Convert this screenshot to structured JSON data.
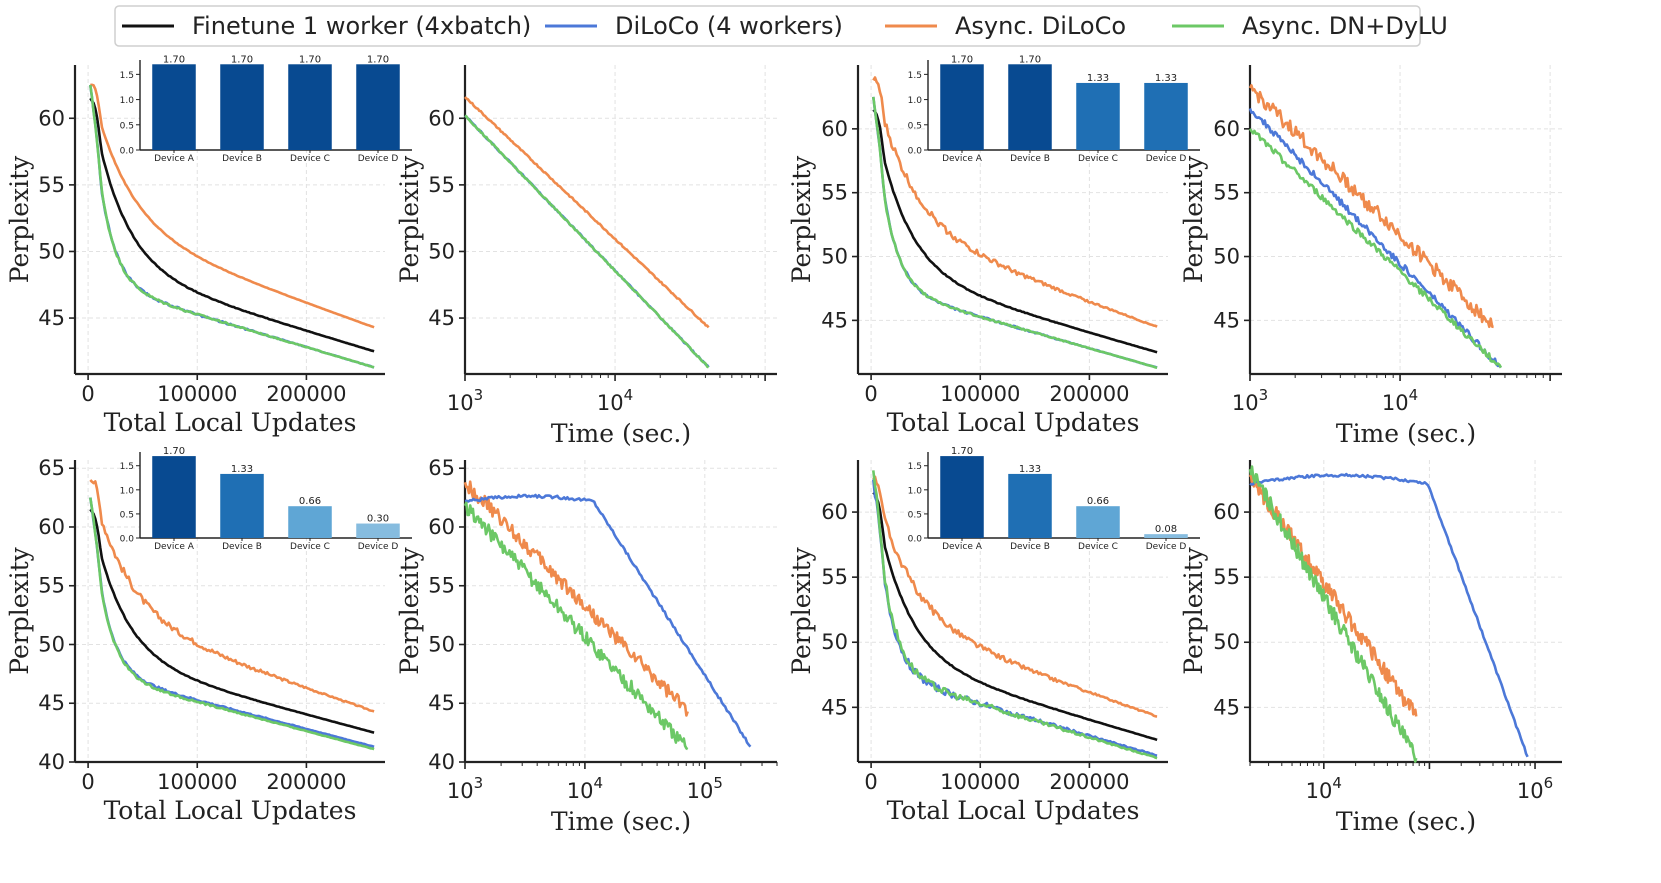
{
  "legend": {
    "items": [
      {
        "label": "Finetune 1 worker (4xbatch)",
        "color": "#111111"
      },
      {
        "label": "DiLoCo (4 workers)",
        "color": "#4c78d8"
      },
      {
        "label": "Async. DiLoCo",
        "color": "#ef8a4c"
      },
      {
        "label": "Async. DN+DyLU",
        "color": "#6cc866"
      }
    ]
  },
  "chart_data": [
    {
      "type": "line",
      "id": "r1-updates",
      "xlabel": "Total Local Updates",
      "ylabel": "Perplexity",
      "xscale": "linear",
      "xlim": [
        -12000,
        272000
      ],
      "ylim": [
        40.8,
        64
      ],
      "xticks": [
        0,
        100000,
        200000
      ],
      "yticks": [
        45,
        50,
        55,
        60
      ],
      "series": [
        {
          "name": "Finetune 1 worker (4xbatch)",
          "start": 61.5,
          "end": 42.5
        },
        {
          "name": "DiLoCo (4 workers)",
          "start": 62.5,
          "end": 41.3
        },
        {
          "name": "Async. DiLoCo",
          "start": 62.5,
          "end": 44.3
        },
        {
          "name": "Async. DN+DyLU",
          "start": 62.5,
          "end": 41.3
        }
      ],
      "inset": {
        "categories": [
          "Device A",
          "Device B",
          "Device C",
          "Device D"
        ],
        "values": [
          1.7,
          1.7,
          1.7,
          1.7
        ],
        "labels": [
          "1.70",
          "1.70",
          "1.70",
          "1.70"
        ],
        "yticks": [
          "0.0",
          "0.5",
          "1.0",
          "1.5"
        ]
      }
    },
    {
      "type": "line",
      "id": "r1-time",
      "xlabel": "Time (sec.)",
      "ylabel": "Perplexity",
      "xscale": "log",
      "xlim": [
        1000,
        120000
      ],
      "ylim": [
        40.8,
        64
      ],
      "yticks": [
        45,
        50,
        55,
        60
      ],
      "xticks": [
        {
          "value": 1000,
          "base": "10",
          "exp": "3"
        },
        {
          "value": 10000,
          "base": "10",
          "exp": "4"
        }
      ],
      "series": [
        {
          "name": "DiLoCo (4 workers)",
          "x_start": 1000,
          "x_end": 42000,
          "start": 60.2,
          "end": 41.3
        },
        {
          "name": "Async. DiLoCo",
          "x_start": 1000,
          "x_end": 42000,
          "start": 61.6,
          "end": 44.3
        },
        {
          "name": "Async. DN+DyLU",
          "x_start": 1000,
          "x_end": 42000,
          "start": 60.2,
          "end": 41.3
        }
      ]
    },
    {
      "type": "line",
      "id": "r1b-updates",
      "xlabel": "Total Local Updates",
      "ylabel": "Perplexity",
      "xscale": "linear",
      "xlim": [
        -12000,
        272000
      ],
      "ylim": [
        40.8,
        65
      ],
      "xticks": [
        0,
        100000,
        200000
      ],
      "yticks": [
        45,
        50,
        55,
        60
      ],
      "series": [
        {
          "name": "Finetune 1 worker (4xbatch)",
          "start": 61.5,
          "end": 42.5
        },
        {
          "name": "DiLoCo (4 workers)",
          "start": 62.5,
          "end": 41.3
        },
        {
          "name": "Async. DiLoCo",
          "start": 63.8,
          "end": 44.5
        },
        {
          "name": "Async. DN+DyLU",
          "start": 62.5,
          "end": 41.3
        }
      ],
      "inset": {
        "categories": [
          "Device A",
          "Device B",
          "Device C",
          "Device D"
        ],
        "values": [
          1.7,
          1.7,
          1.33,
          1.33
        ],
        "labels": [
          "1.70",
          "1.70",
          "1.33",
          "1.33"
        ],
        "yticks": [
          "0.0",
          "0.5",
          "1.0",
          "1.5"
        ]
      }
    },
    {
      "type": "line",
      "id": "r1b-time",
      "xlabel": "Time (sec.)",
      "ylabel": "Perplexity",
      "xscale": "log",
      "xlim": [
        1000,
        120000
      ],
      "ylim": [
        40.8,
        65
      ],
      "yticks": [
        45,
        50,
        55,
        60
      ],
      "xticks": [
        {
          "value": 1000,
          "base": "10",
          "exp": "3"
        },
        {
          "value": 10000,
          "base": "10",
          "exp": "4"
        }
      ],
      "series": [
        {
          "name": "DiLoCo (4 workers)",
          "x_start": 1000,
          "x_end": 47000,
          "start": 61.6,
          "end": 41.3
        },
        {
          "name": "Async. DiLoCo",
          "x_start": 1000,
          "x_end": 42000,
          "start": 63.2,
          "end": 44.5
        },
        {
          "name": "Async. DN+DyLU",
          "x_start": 1000,
          "x_end": 47000,
          "start": 60.0,
          "end": 41.3
        }
      ]
    },
    {
      "type": "line",
      "id": "r2-updates",
      "xlabel": "Total Local Updates",
      "ylabel": "Perplexity",
      "xscale": "linear",
      "xlim": [
        -12000,
        272000
      ],
      "ylim": [
        40,
        65.7
      ],
      "xticks": [
        0,
        100000,
        200000
      ],
      "yticks": [
        40,
        45,
        50,
        55,
        60,
        65
      ],
      "series": [
        {
          "name": "Finetune 1 worker (4xbatch)",
          "start": 61.5,
          "end": 42.5
        },
        {
          "name": "DiLoCo (4 workers)",
          "start": 62.5,
          "end": 41.3
        },
        {
          "name": "Async. DiLoCo",
          "start": 64.0,
          "end": 44.3
        },
        {
          "name": "Async. DN+DyLU",
          "start": 62.5,
          "end": 41.1
        }
      ],
      "inset": {
        "categories": [
          "Device A",
          "Device B",
          "Device C",
          "Device D"
        ],
        "values": [
          1.7,
          1.33,
          0.66,
          0.3
        ],
        "labels": [
          "1.70",
          "1.33",
          "0.66",
          "0.30"
        ],
        "yticks": [
          "0.0",
          "0.5",
          "1.0",
          "1.5"
        ]
      }
    },
    {
      "type": "line",
      "id": "r2-time",
      "xlabel": "Time (sec.)",
      "ylabel": "Perplexity",
      "xscale": "log",
      "xlim": [
        1000,
        400000
      ],
      "ylim": [
        40,
        65.7
      ],
      "yticks": [
        40,
        45,
        50,
        55,
        60,
        65
      ],
      "xticks": [
        {
          "value": 1000,
          "base": "10",
          "exp": "3"
        },
        {
          "value": 10000,
          "base": "10",
          "exp": "4"
        },
        {
          "value": 100000,
          "base": "10",
          "exp": "5"
        }
      ],
      "series": [
        {
          "name": "DiLoCo (4 workers)",
          "x_start": 1000,
          "x_end": 240000,
          "start": 62.2,
          "end": 41.3
        },
        {
          "name": "Async. DiLoCo",
          "x_start": 1000,
          "x_end": 72000,
          "start": 63.8,
          "end": 44.3
        },
        {
          "name": "Async. DN+DyLU",
          "x_start": 1000,
          "x_end": 72000,
          "start": 61.8,
          "end": 41.1
        }
      ]
    },
    {
      "type": "line",
      "id": "r2b-updates",
      "xlabel": "Total Local Updates",
      "ylabel": "Perplexity",
      "xscale": "linear",
      "xlim": [
        -12000,
        272000
      ],
      "ylim": [
        40.8,
        64
      ],
      "xticks": [
        0,
        100000,
        200000
      ],
      "yticks": [
        45,
        50,
        55,
        60
      ],
      "series": [
        {
          "name": "Finetune 1 worker (4xbatch)",
          "start": 61.5,
          "end": 42.5
        },
        {
          "name": "DiLoCo (4 workers)",
          "start": 62.5,
          "end": 41.3
        },
        {
          "name": "Async. DiLoCo",
          "start": 62.5,
          "end": 44.3
        },
        {
          "name": "Async. DN+DyLU",
          "start": 63.2,
          "end": 41.1
        }
      ],
      "inset": {
        "categories": [
          "Device A",
          "Device B",
          "Device C",
          "Device D"
        ],
        "values": [
          1.7,
          1.33,
          0.66,
          0.08
        ],
        "labels": [
          "1.70",
          "1.33",
          "0.66",
          "0.08"
        ],
        "yticks": [
          "0.0",
          "0.5",
          "1.0",
          "1.5"
        ]
      }
    },
    {
      "type": "line",
      "id": "r2b-time",
      "xlabel": "Time (sec.)",
      "ylabel": "Perplexity",
      "xscale": "log",
      "xlim": [
        2000,
        1800000
      ],
      "ylim": [
        40.8,
        64
      ],
      "yticks": [
        45,
        50,
        55,
        60
      ],
      "xticks": [
        {
          "value": 10000,
          "base": "10",
          "exp": "4"
        },
        {
          "value": 1000000,
          "base": "10",
          "exp": "6"
        }
      ],
      "series": [
        {
          "name": "DiLoCo (4 workers)",
          "x_start": 2000,
          "x_end": 850000,
          "start": 62.2,
          "end": 41.2
        },
        {
          "name": "Async. DiLoCo",
          "x_start": 2000,
          "x_end": 75000,
          "start": 62.7,
          "end": 44.3
        },
        {
          "name": "Async. DN+DyLU",
          "x_start": 2000,
          "x_end": 75000,
          "start": 63.3,
          "end": 41.1
        }
      ]
    }
  ]
}
